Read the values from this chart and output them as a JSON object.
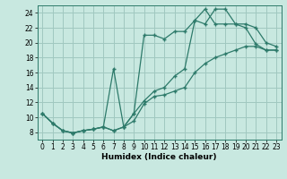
{
  "xlabel": "Humidex (Indice chaleur)",
  "bg_color": "#c8e8e0",
  "grid_color": "#a0c8c0",
  "line_color": "#2d7a6a",
  "xlim": [
    -0.5,
    23.5
  ],
  "ylim": [
    7.0,
    25.0
  ],
  "xticks": [
    0,
    1,
    2,
    3,
    4,
    5,
    6,
    7,
    8,
    9,
    10,
    11,
    12,
    13,
    14,
    15,
    16,
    17,
    18,
    19,
    20,
    21,
    22,
    23
  ],
  "yticks": [
    8,
    10,
    12,
    14,
    16,
    18,
    20,
    22,
    24
  ],
  "line1_x": [
    0,
    1,
    2,
    3,
    4,
    5,
    6,
    7,
    8,
    9,
    10,
    11,
    12,
    13,
    14,
    15,
    16,
    17,
    18,
    19,
    20,
    21,
    22,
    23
  ],
  "line1_y": [
    10.5,
    9.2,
    8.2,
    7.9,
    8.2,
    8.4,
    8.7,
    8.2,
    8.7,
    9.5,
    11.8,
    12.8,
    13.0,
    13.5,
    14.0,
    16.0,
    17.2,
    18.0,
    18.5,
    19.0,
    19.5,
    19.5,
    19.0,
    19.0
  ],
  "line2_x": [
    0,
    1,
    2,
    3,
    4,
    5,
    6,
    7,
    8,
    9,
    10,
    11,
    12,
    13,
    14,
    15,
    16,
    17,
    18,
    19,
    20,
    21,
    22,
    23
  ],
  "line2_y": [
    10.5,
    9.2,
    8.2,
    7.9,
    8.2,
    8.4,
    8.7,
    8.2,
    8.7,
    10.5,
    12.2,
    13.5,
    14.0,
    15.5,
    16.5,
    23.0,
    22.5,
    24.5,
    24.5,
    22.5,
    22.5,
    22.0,
    20.0,
    19.5
  ],
  "line3_x": [
    0,
    1,
    2,
    3,
    4,
    5,
    6,
    7,
    8,
    9,
    10,
    11,
    12,
    13,
    14,
    15,
    16,
    17,
    18,
    19,
    20,
    21,
    22,
    23
  ],
  "line3_y": [
    10.5,
    9.2,
    8.2,
    7.9,
    8.2,
    8.4,
    8.7,
    16.5,
    8.7,
    10.5,
    21.0,
    21.0,
    20.5,
    21.5,
    21.5,
    23.0,
    24.5,
    22.5,
    22.5,
    22.5,
    22.0,
    19.8,
    19.0,
    19.0
  ]
}
